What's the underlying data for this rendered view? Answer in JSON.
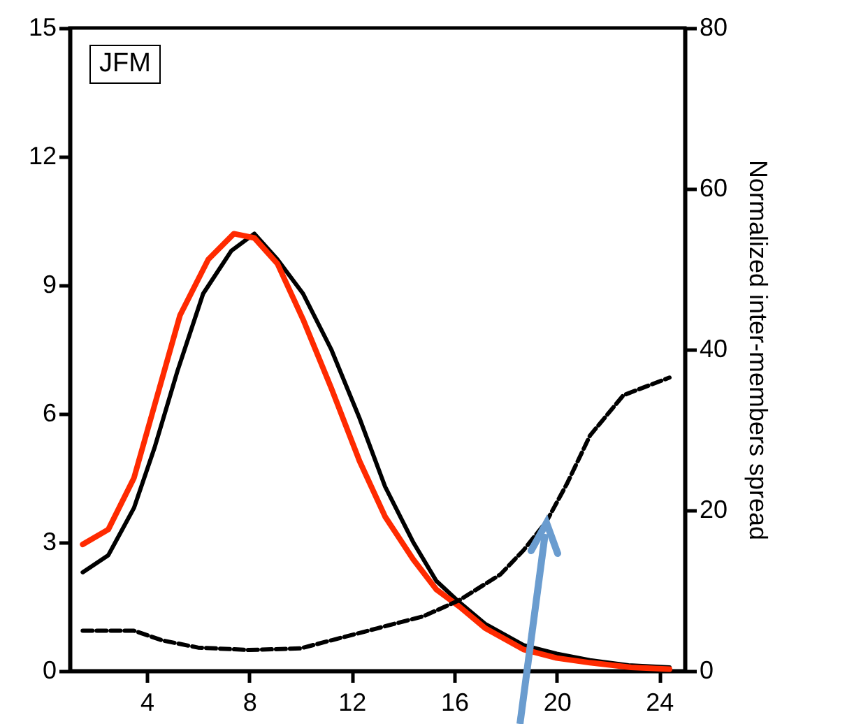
{
  "chart_data": {
    "type": "line",
    "y2label": "Normalized inter-members spread",
    "annotations": [
      "JFM"
    ],
    "xlim": [
      1,
      25
    ],
    "xticks": [
      4,
      8,
      12,
      16,
      20,
      24
    ],
    "ylim": [
      0,
      15
    ],
    "yticks": [
      0,
      3,
      6,
      9,
      12,
      15
    ],
    "y2lim": [
      0,
      80
    ],
    "y2ticks": [
      0,
      20,
      40,
      60,
      80
    ],
    "grid": false,
    "series": [
      {
        "color": "#000000",
        "line_style": "solid",
        "x": [
          1.5,
          2.5,
          3.5,
          4.3,
          5.2,
          6.2,
          7.3,
          8.2,
          9.1,
          10.1,
          11.2,
          12.3,
          13.3,
          14.4,
          15.3,
          16.2,
          17.2,
          18.7,
          20,
          21.3,
          22.8,
          24.4
        ],
        "values": [
          2.3,
          2.7,
          3.8,
          5.2,
          7.0,
          8.8,
          9.8,
          10.2,
          9.6,
          8.8,
          7.5,
          5.9,
          4.3,
          3.0,
          2.1,
          1.6,
          1.1,
          0.6,
          0.4,
          0.25,
          0.13,
          0.08
        ]
      },
      {
        "color": "#ff2a00",
        "line_style": "solid",
        "x": [
          1.5,
          2.5,
          3.5,
          4.4,
          5.3,
          6.4,
          7.4,
          8.2,
          9.1,
          10.1,
          11.2,
          12.3,
          13.3,
          14.4,
          15.3,
          16.2,
          17.2,
          18.7,
          20,
          21.3,
          22.9,
          24.4
        ],
        "values": [
          2.95,
          3.3,
          4.5,
          6.4,
          8.3,
          9.6,
          10.2,
          10.1,
          9.5,
          8.2,
          6.6,
          4.9,
          3.6,
          2.6,
          1.9,
          1.5,
          1.0,
          0.5,
          0.3,
          0.19,
          0.08,
          0.04
        ]
      },
      {
        "color": "#000000",
        "line_style": "dashed",
        "axis": "y2",
        "x": [
          1.5,
          3.5,
          4.6,
          6.0,
          8.0,
          10.0,
          11.2,
          13.0,
          14.8,
          16.2,
          17.8,
          18.7,
          19.6,
          20.4,
          21.3,
          22.6,
          24.4
        ],
        "values": [
          5.0,
          5.0,
          3.8,
          2.9,
          2.6,
          2.8,
          3.8,
          5.3,
          6.8,
          8.8,
          12.0,
          15.0,
          18.6,
          23.3,
          29.3,
          34.3,
          36.5
        ]
      }
    ]
  }
}
